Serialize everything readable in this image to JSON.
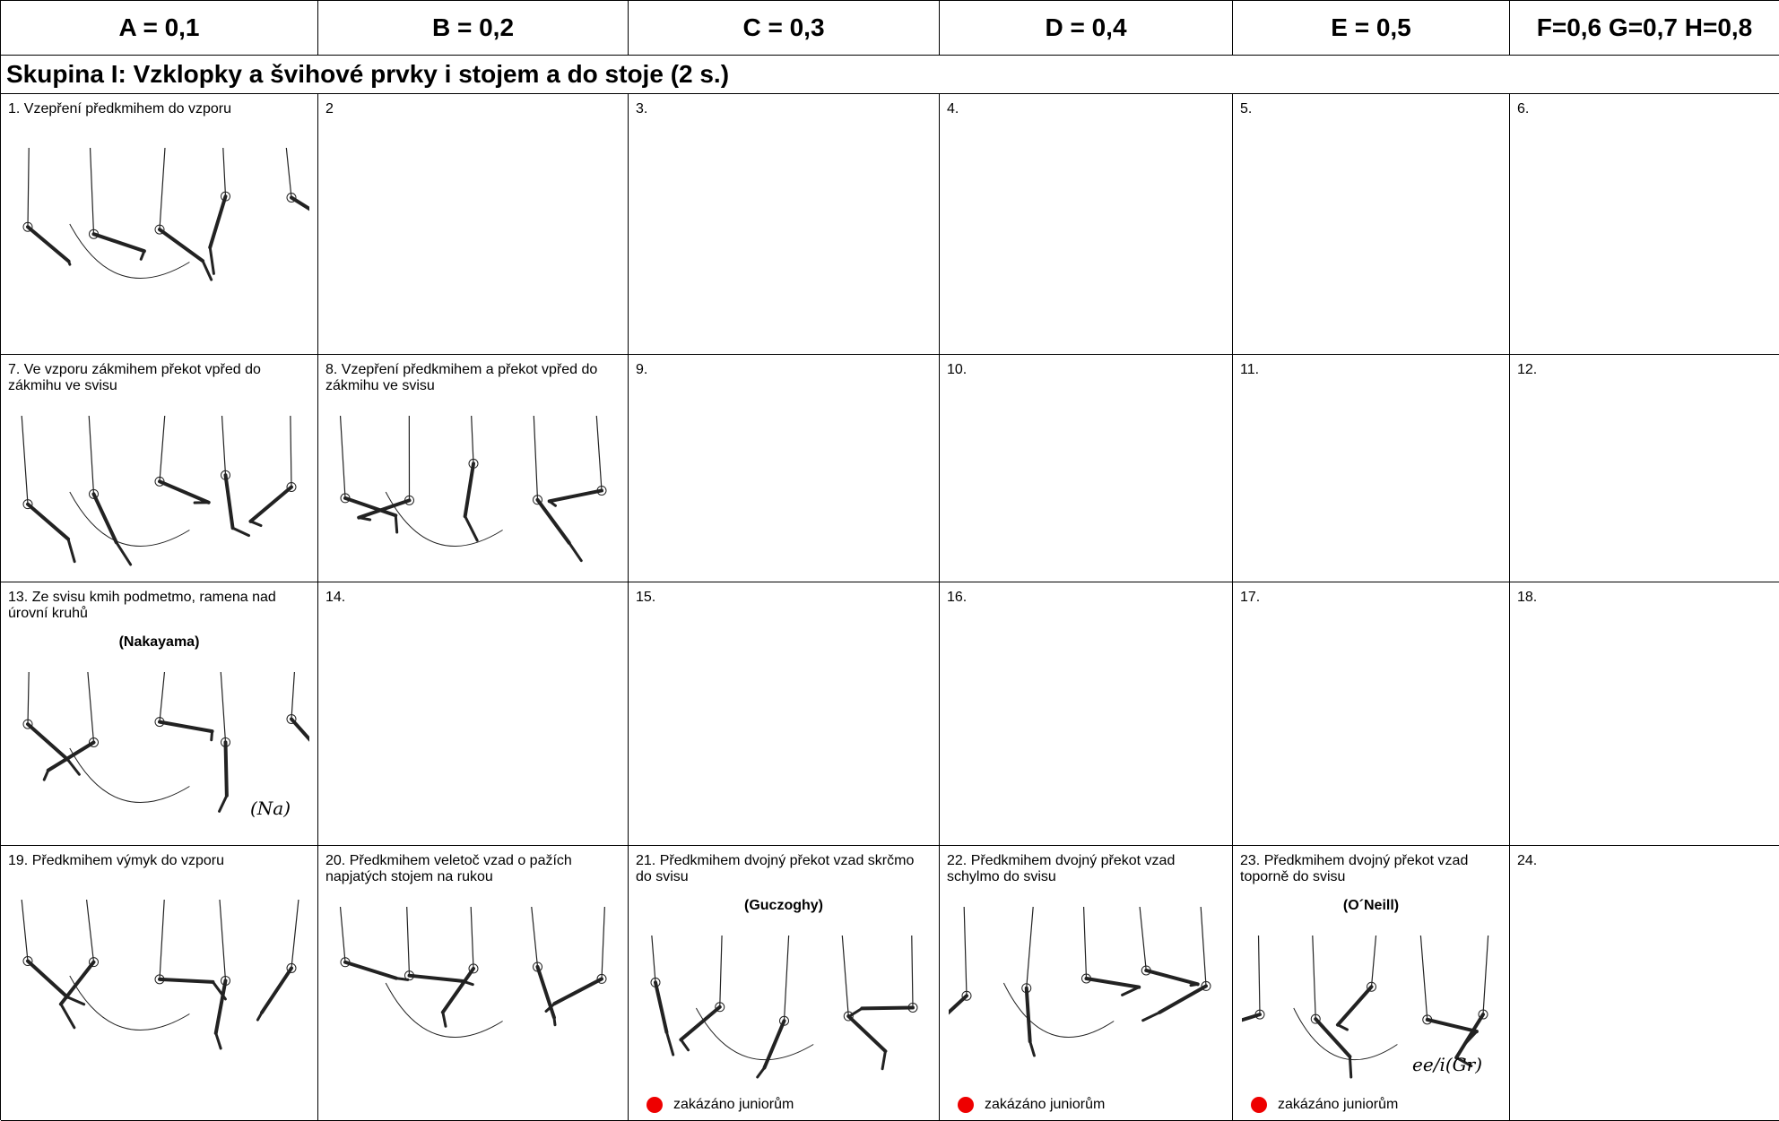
{
  "header": [
    "A = 0,1",
    "B = 0,2",
    "C = 0,3",
    "D = 0,4",
    "E = 0,5",
    "F=0,6 G=0,7 H=0,8"
  ],
  "group_title": "Skupina I: Vzklopky a švihové prvky i stojem a do stoje (2 s.)",
  "rows": [
    [
      {
        "text": "1. Vzepření předkmihem do vzporu"
      },
      {
        "text": "2"
      },
      {
        "text": "3."
      },
      {
        "text": "4."
      },
      {
        "text": "5."
      },
      {
        "text": "6."
      }
    ],
    [
      {
        "text": "7. Ve vzporu zákmihem překot vpřed do zákmihu ve svisu"
      },
      {
        "text": "8. Vzepření předkmihem a překot vpřed do zákmihu ve svisu"
      },
      {
        "text": "9."
      },
      {
        "text": "10."
      },
      {
        "text": "11."
      },
      {
        "text": "12."
      }
    ],
    [
      {
        "text": "13. Ze svisu kmih podmetmo, ramena nad úrovní kruhů",
        "name": "(Nakayama)",
        "sketch_label": "(Na)"
      },
      {
        "text": "14."
      },
      {
        "text": "15."
      },
      {
        "text": "16."
      },
      {
        "text": "17."
      },
      {
        "text": "18."
      }
    ],
    [
      {
        "text": "19. Předkmihem výmyk do vzporu"
      },
      {
        "text": "20. Předkmihem veletoč vzad o pažích napjatých stojem na rukou"
      },
      {
        "text": "21. Předkmihem dvojný překot vzad skrčmo do svisu",
        "name": "(Guczoghy)",
        "note": "zakázáno juniorům"
      },
      {
        "text": "22. Předkmihem dvojný překot vzad schylmo do svisu",
        "note": "zakázáno juniorům"
      },
      {
        "text": "23. Předkmihem dvojný překot vzad toporně do svisu",
        "name": "(O´Neill)",
        "note": "zakázáno juniorům",
        "sketch_label": "ee/i(Gr)"
      },
      {
        "text": "24."
      }
    ]
  ]
}
